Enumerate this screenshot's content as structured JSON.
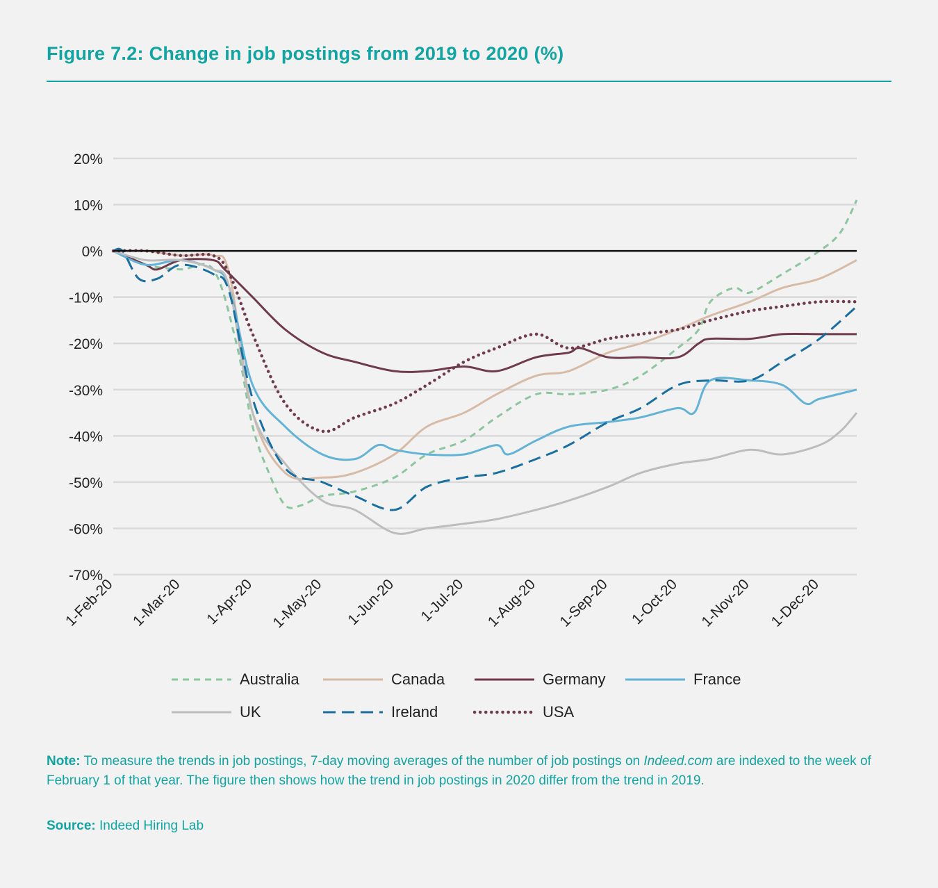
{
  "title": "Figure 7.2: Change in job postings from 2019 to 2020 (%)",
  "note_label": "Note:",
  "note_text_1": " To measure the trends in job postings, 7-day moving averages of the number of job postings on ",
  "note_italic": "Indeed.com",
  "note_text_2": " are indexed to the week of February 1 of that year. The figure then shows how the trend in job postings in 2020 differ from the trend in 2019.",
  "source_label": "Source:",
  "source_text": " Indeed Hiring Lab",
  "colors": {
    "accent": "#12a4a2"
  },
  "chart_data": {
    "type": "line",
    "title": "Change in job postings from 2019 to 2020 (%)",
    "xlabel": "",
    "ylabel": "",
    "ylim": [
      -70,
      20
    ],
    "yticks": [
      "20%",
      "10%",
      "0%",
      "-10%",
      "-20%",
      "-30%",
      "-40%",
      "-50%",
      "-60%",
      "-70%"
    ],
    "ytick_values": [
      20,
      10,
      0,
      -10,
      -20,
      -30,
      -40,
      -50,
      -60,
      -70
    ],
    "xlim": [
      "2020-02-01",
      "2020-12-17"
    ],
    "xticks": [
      "1-Feb-20",
      "1-Mar-20",
      "1-Apr-20",
      "1-May-20",
      "1-Jun-20",
      "1-Jul-20",
      "1-Aug-20",
      "1-Sep-20",
      "1-Oct-20",
      "1-Nov-20",
      "1-Dec-20"
    ],
    "xtick_dates": [
      "2020-02-01",
      "2020-03-01",
      "2020-04-01",
      "2020-05-01",
      "2020-06-01",
      "2020-07-01",
      "2020-08-01",
      "2020-09-01",
      "2020-10-01",
      "2020-11-01",
      "2020-12-01"
    ],
    "grid": true,
    "legend": "bottom",
    "series": [
      {
        "name": "Australia",
        "color": "#8cc59e",
        "style": "dashed",
        "x": [
          "2020-02-01",
          "2020-02-15",
          "2020-03-01",
          "2020-03-15",
          "2020-03-25",
          "2020-04-01",
          "2020-04-08",
          "2020-04-15",
          "2020-04-22",
          "2020-05-01",
          "2020-05-15",
          "2020-06-01",
          "2020-06-15",
          "2020-07-01",
          "2020-07-15",
          "2020-08-01",
          "2020-08-15",
          "2020-09-01",
          "2020-09-15",
          "2020-10-01",
          "2020-10-10",
          "2020-10-15",
          "2020-10-25",
          "2020-11-01",
          "2020-11-15",
          "2020-12-01",
          "2020-12-10",
          "2020-12-17"
        ],
        "y": [
          0,
          -3,
          -4,
          -4,
          -20,
          -38,
          -48,
          -55,
          -55,
          -53,
          -52,
          -49,
          -44,
          -41,
          -36,
          -31,
          -31,
          -30,
          -27,
          -21,
          -17,
          -11,
          -8,
          -9,
          -5,
          0,
          4,
          11
        ]
      },
      {
        "name": "Canada",
        "color": "#d8bba6",
        "style": "solid",
        "x": [
          "2020-02-01",
          "2020-02-15",
          "2020-03-01",
          "2020-03-15",
          "2020-03-22",
          "2020-04-01",
          "2020-04-15",
          "2020-05-01",
          "2020-05-15",
          "2020-06-01",
          "2020-06-15",
          "2020-07-01",
          "2020-07-15",
          "2020-08-01",
          "2020-08-15",
          "2020-09-01",
          "2020-09-15",
          "2020-10-01",
          "2020-10-15",
          "2020-11-01",
          "2020-11-15",
          "2020-12-01",
          "2020-12-17"
        ],
        "y": [
          0,
          0,
          -1,
          -1,
          -5,
          -35,
          -48,
          -49,
          -48,
          -44,
          -38,
          -35,
          -31,
          -27,
          -26,
          -22,
          -20,
          -17,
          -14,
          -11,
          -8,
          -6,
          -2
        ]
      },
      {
        "name": "Germany",
        "color": "#6e3a4c",
        "style": "solid",
        "x": [
          "2020-02-01",
          "2020-02-15",
          "2020-02-20",
          "2020-03-01",
          "2020-03-15",
          "2020-03-20",
          "2020-04-01",
          "2020-04-15",
          "2020-05-01",
          "2020-05-15",
          "2020-06-01",
          "2020-06-15",
          "2020-07-01",
          "2020-07-15",
          "2020-08-01",
          "2020-08-15",
          "2020-08-20",
          "2020-09-01",
          "2020-09-15",
          "2020-10-01",
          "2020-10-10",
          "2020-10-15",
          "2020-11-01",
          "2020-11-15",
          "2020-12-01",
          "2020-12-17"
        ],
        "y": [
          0,
          -3,
          -4,
          -2,
          -2,
          -4,
          -10,
          -17,
          -22,
          -24,
          -26,
          -26,
          -25,
          -26,
          -23,
          -22,
          -21,
          -23,
          -23,
          -23,
          -20,
          -19,
          -19,
          -18,
          -18,
          -18
        ]
      },
      {
        "name": "France",
        "color": "#63b3d6",
        "style": "solid",
        "x": [
          "2020-02-01",
          "2020-02-15",
          "2020-03-01",
          "2020-03-15",
          "2020-03-22",
          "2020-04-01",
          "2020-04-15",
          "2020-05-01",
          "2020-05-15",
          "2020-05-25",
          "2020-06-01",
          "2020-06-15",
          "2020-07-01",
          "2020-07-15",
          "2020-07-20",
          "2020-08-01",
          "2020-08-15",
          "2020-09-01",
          "2020-09-15",
          "2020-10-01",
          "2020-10-08",
          "2020-10-15",
          "2020-11-01",
          "2020-11-15",
          "2020-11-25",
          "2020-12-01",
          "2020-12-17"
        ],
        "y": [
          0,
          -3,
          -2,
          -4,
          -8,
          -29,
          -38,
          -44,
          -45,
          -42,
          -43,
          -44,
          -44,
          -42,
          -44,
          -41,
          -38,
          -37,
          -36,
          -34,
          -35,
          -28,
          -28,
          -29,
          -33,
          -32,
          -30
        ]
      },
      {
        "name": "UK",
        "color": "#bdbdbd",
        "style": "solid",
        "x": [
          "2020-02-01",
          "2020-02-15",
          "2020-03-01",
          "2020-03-15",
          "2020-03-22",
          "2020-04-01",
          "2020-04-15",
          "2020-05-01",
          "2020-05-15",
          "2020-06-01",
          "2020-06-15",
          "2020-07-01",
          "2020-07-15",
          "2020-08-01",
          "2020-08-15",
          "2020-09-01",
          "2020-09-15",
          "2020-10-01",
          "2020-10-15",
          "2020-11-01",
          "2020-11-15",
          "2020-12-01",
          "2020-12-10",
          "2020-12-17"
        ],
        "y": [
          0,
          -2,
          -2,
          -4,
          -8,
          -35,
          -46,
          -54,
          -56,
          -61,
          -60,
          -59,
          -58,
          -56,
          -54,
          -51,
          -48,
          -46,
          -45,
          -43,
          -44,
          -42,
          -39,
          -35
        ]
      },
      {
        "name": "Ireland",
        "color": "#1a6fa0",
        "style": "longdash",
        "x": [
          "2020-02-01",
          "2020-02-05",
          "2020-02-12",
          "2020-02-20",
          "2020-03-01",
          "2020-03-15",
          "2020-03-22",
          "2020-04-01",
          "2020-04-15",
          "2020-05-01",
          "2020-05-15",
          "2020-06-01",
          "2020-06-15",
          "2020-07-01",
          "2020-07-15",
          "2020-08-01",
          "2020-08-15",
          "2020-09-01",
          "2020-09-15",
          "2020-10-01",
          "2020-10-15",
          "2020-11-01",
          "2020-11-15",
          "2020-12-01",
          "2020-12-17"
        ],
        "y": [
          0,
          0,
          -6,
          -6,
          -3,
          -5,
          -9,
          -32,
          -47,
          -50,
          -53,
          -56,
          -51,
          -49,
          -48,
          -45,
          -42,
          -37,
          -34,
          -29,
          -28,
          -28,
          -24,
          -19,
          -12
        ]
      },
      {
        "name": "USA",
        "color": "#6e3a4c",
        "style": "dotted",
        "x": [
          "2020-02-01",
          "2020-02-15",
          "2020-03-01",
          "2020-03-15",
          "2020-03-22",
          "2020-04-01",
          "2020-04-15",
          "2020-05-01",
          "2020-05-15",
          "2020-06-01",
          "2020-06-15",
          "2020-07-01",
          "2020-07-15",
          "2020-08-01",
          "2020-08-15",
          "2020-09-01",
          "2020-09-15",
          "2020-10-01",
          "2020-10-15",
          "2020-11-01",
          "2020-11-15",
          "2020-12-01",
          "2020-12-17"
        ],
        "y": [
          0,
          0,
          -1,
          -1,
          -5,
          -18,
          -33,
          -39,
          -36,
          -33,
          -29,
          -24,
          -21,
          -18,
          -21,
          -19,
          -18,
          -17,
          -15,
          -13,
          -12,
          -11,
          -11
        ]
      }
    ]
  }
}
